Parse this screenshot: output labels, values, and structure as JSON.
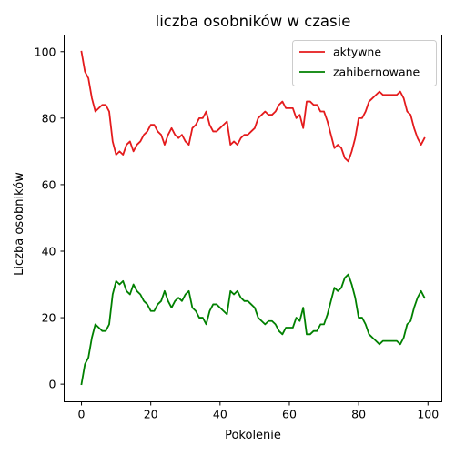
{
  "chart_data": {
    "type": "line",
    "title": "liczba osobników w czasie",
    "xlabel": "Pokolenie",
    "ylabel": "Liczba osobników",
    "xlim": [
      -5,
      104
    ],
    "ylim": [
      -5.3,
      105
    ],
    "xticks": [
      0,
      20,
      40,
      60,
      80,
      100
    ],
    "yticks": [
      0,
      20,
      40,
      60,
      80,
      100
    ],
    "grid": false,
    "legend": "top-right",
    "x": [
      0,
      1,
      2,
      3,
      4,
      5,
      6,
      7,
      8,
      9,
      10,
      11,
      12,
      13,
      14,
      15,
      16,
      17,
      18,
      19,
      20,
      21,
      22,
      23,
      24,
      25,
      26,
      27,
      28,
      29,
      30,
      31,
      32,
      33,
      34,
      35,
      36,
      37,
      38,
      39,
      40,
      41,
      42,
      43,
      44,
      45,
      46,
      47,
      48,
      49,
      50,
      51,
      52,
      53,
      54,
      55,
      56,
      57,
      58,
      59,
      60,
      61,
      62,
      63,
      64,
      65,
      66,
      67,
      68,
      69,
      70,
      71,
      72,
      73,
      74,
      75,
      76,
      77,
      78,
      79,
      80,
      81,
      82,
      83,
      84,
      85,
      86,
      87,
      88,
      89,
      90,
      91,
      92,
      93,
      94,
      95,
      96,
      97,
      98,
      99
    ],
    "series": [
      {
        "name": "aktywne",
        "color": "#e41a1c",
        "values": [
          100,
          94,
          92,
          86,
          82,
          83,
          84,
          84,
          82,
          73,
          69,
          70,
          69,
          72,
          73,
          70,
          72,
          73,
          75,
          76,
          78,
          78,
          76,
          75,
          72,
          75,
          77,
          75,
          74,
          75,
          73,
          72,
          77,
          78,
          80,
          80,
          82,
          78,
          76,
          76,
          77,
          78,
          79,
          72,
          73,
          72,
          74,
          75,
          75,
          76,
          77,
          80,
          81,
          82,
          81,
          81,
          82,
          84,
          85,
          83,
          83,
          83,
          80,
          81,
          77,
          85,
          85,
          84,
          84,
          82,
          82,
          79,
          75,
          71,
          72,
          71,
          68,
          67,
          70,
          74,
          80,
          80,
          82,
          85,
          86,
          87,
          88,
          87,
          87,
          87,
          87,
          87,
          88,
          86,
          82,
          81,
          77,
          74,
          72,
          74
        ]
      },
      {
        "name": "zahibernowane",
        "color": "#008000",
        "values": [
          0,
          6,
          8,
          14,
          18,
          17,
          16,
          16,
          18,
          27,
          31,
          30,
          31,
          28,
          27,
          30,
          28,
          27,
          25,
          24,
          22,
          22,
          24,
          25,
          28,
          25,
          23,
          25,
          26,
          25,
          27,
          28,
          23,
          22,
          20,
          20,
          18,
          22,
          24,
          24,
          23,
          22,
          21,
          28,
          27,
          28,
          26,
          25,
          25,
          24,
          23,
          20,
          19,
          18,
          19,
          19,
          18,
          16,
          15,
          17,
          17,
          17,
          20,
          19,
          23,
          15,
          15,
          16,
          16,
          18,
          18,
          21,
          25,
          29,
          28,
          29,
          32,
          33,
          30,
          26,
          20,
          20,
          18,
          15,
          14,
          13,
          12,
          13,
          13,
          13,
          13,
          13,
          12,
          14,
          18,
          19,
          23,
          26,
          28,
          26
        ]
      }
    ]
  }
}
